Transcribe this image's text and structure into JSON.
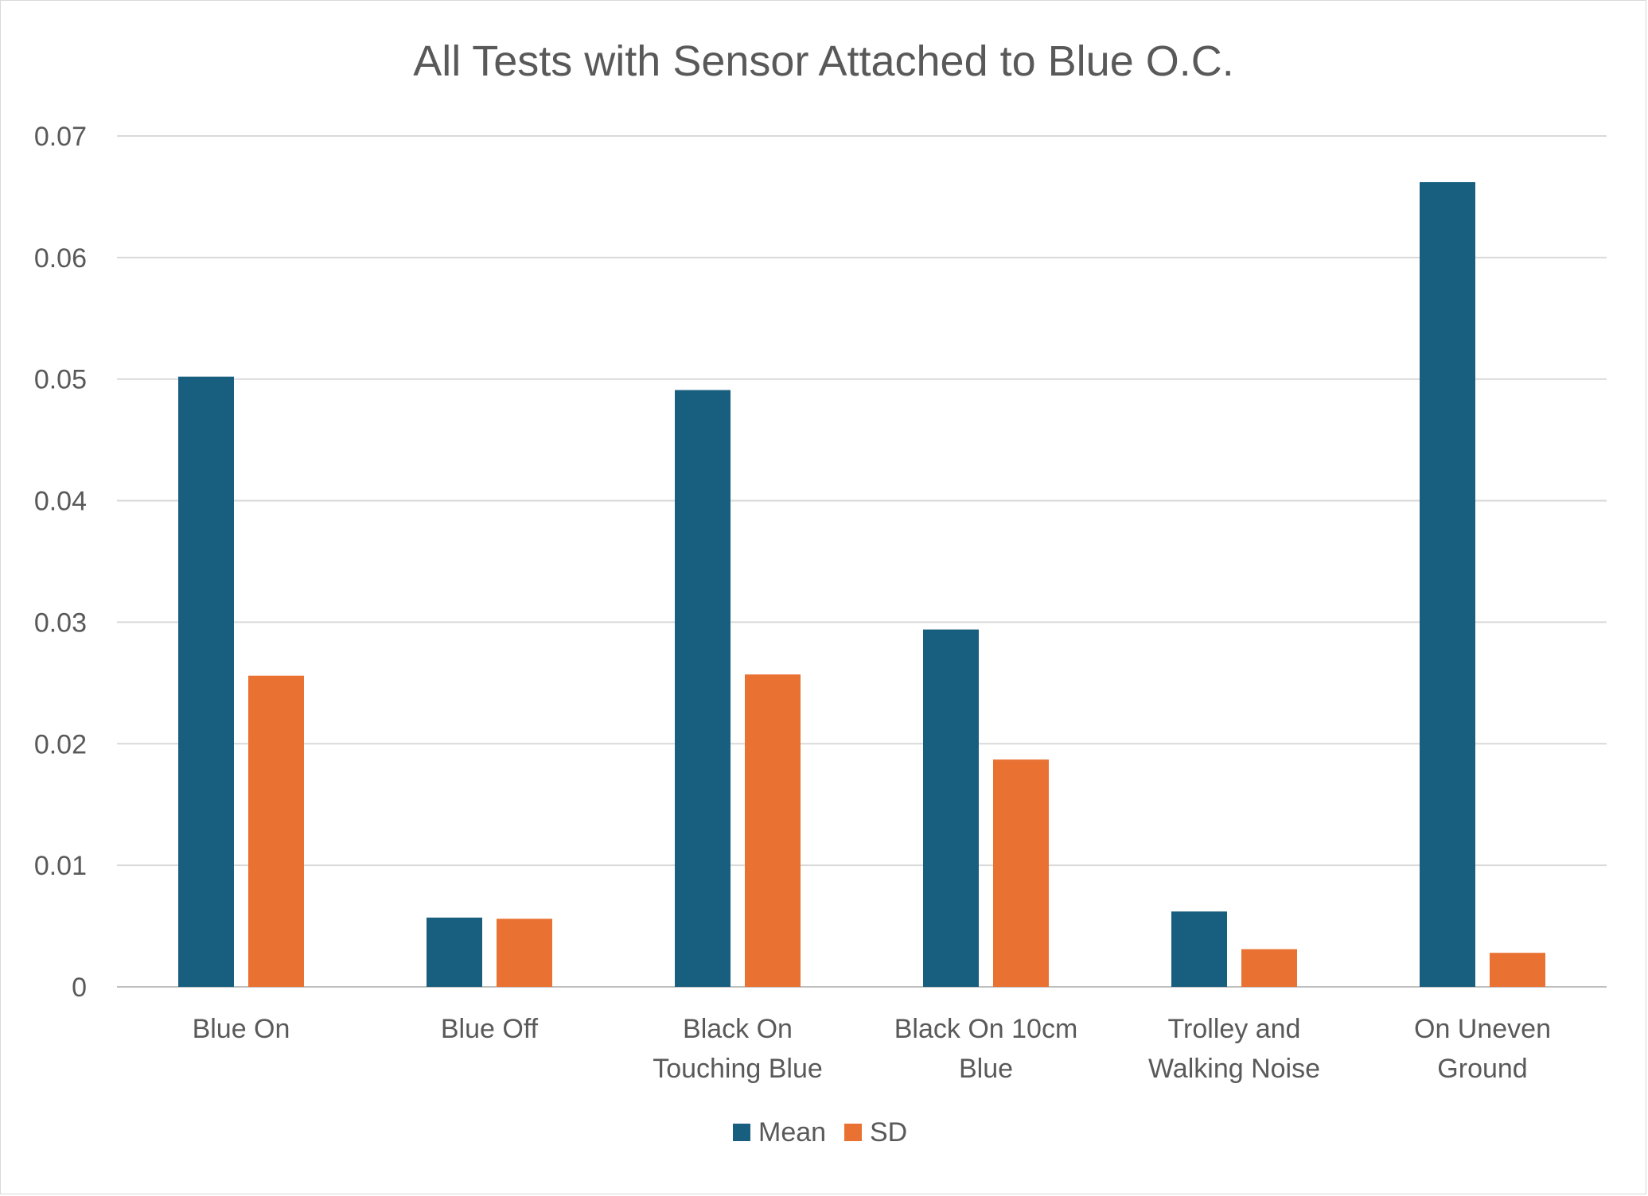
{
  "chart_data": {
    "type": "bar",
    "title": "All Tests with Sensor Attached to Blue O.C.",
    "xlabel": "",
    "ylabel": "",
    "categories": [
      [
        "Blue On"
      ],
      [
        "Blue Off"
      ],
      [
        "Black On",
        "Touching Blue"
      ],
      [
        "Black On 10cm",
        "Blue"
      ],
      [
        "Trolley and",
        "Walking Noise"
      ],
      [
        "On Uneven",
        "Ground"
      ]
    ],
    "series": [
      {
        "name": "Mean",
        "color": "#185f7f",
        "values": [
          0.0502,
          0.0057,
          0.0491,
          0.0294,
          0.0062,
          0.0662
        ]
      },
      {
        "name": "SD",
        "color": "#e97132",
        "values": [
          0.0256,
          0.0056,
          0.0257,
          0.0187,
          0.0031,
          0.0028
        ]
      }
    ],
    "ylim": [
      0,
      0.07
    ],
    "yticks": [
      "0",
      "0.01",
      "0.02",
      "0.03",
      "0.04",
      "0.05",
      "0.06",
      "0.07"
    ],
    "grid": true,
    "legend_position": "bottom"
  }
}
